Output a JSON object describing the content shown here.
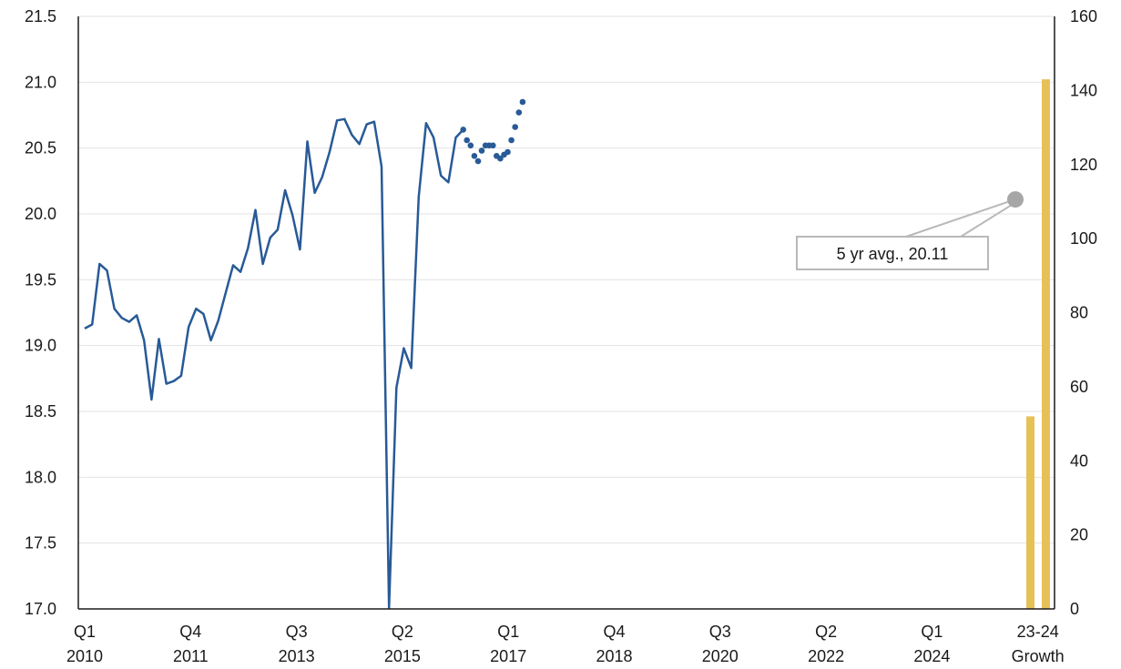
{
  "chart_data": {
    "type": "line",
    "x_labels": [
      [
        "Q1",
        "2010"
      ],
      [
        "Q4",
        "2011"
      ],
      [
        "Q3",
        "2013"
      ],
      [
        "Q2",
        "2015"
      ],
      [
        "Q1",
        "2017"
      ],
      [
        "Q4",
        "2018"
      ],
      [
        "Q3",
        "2020"
      ],
      [
        "Q2",
        "2022"
      ],
      [
        "Q1",
        "2024"
      ],
      [
        "23-24",
        "Growth"
      ]
    ],
    "left_axis": {
      "ylim": [
        17.0,
        21.5
      ],
      "ticks": [
        "17.0",
        "17.5",
        "18.0",
        "18.5",
        "19.0",
        "19.5",
        "20.0",
        "20.5",
        "21.0",
        "21.5"
      ]
    },
    "right_axis": {
      "ylim": [
        0,
        160
      ],
      "ticks": [
        "0",
        "20",
        "40",
        "60",
        "80",
        "100",
        "120",
        "140",
        "160"
      ]
    },
    "series": [
      {
        "style": "solid-line",
        "color": "#285a97",
        "x_start": "2010 Q1",
        "values": [
          19.13,
          19.16,
          19.62,
          19.57,
          19.28,
          19.21,
          19.18,
          19.23,
          19.04,
          18.59,
          19.05,
          18.71,
          18.73,
          18.77,
          19.14,
          19.28,
          19.24,
          19.04,
          19.19,
          19.4,
          19.61,
          19.56,
          19.74,
          20.03,
          19.62,
          19.82,
          19.88,
          20.18,
          19.99,
          19.73,
          20.55,
          20.16,
          20.28,
          20.47,
          20.71,
          20.72,
          20.6,
          20.53,
          20.68,
          20.7,
          20.36,
          17.01,
          18.68,
          18.98,
          18.83,
          20.13,
          20.69,
          20.58,
          20.29,
          20.24,
          20.58,
          20.64
        ]
      },
      {
        "style": "dotted-line",
        "color": "#285a97",
        "x_start": "2022 Q4",
        "values": [
          20.64,
          20.56,
          20.52,
          20.44,
          20.4,
          20.48,
          20.52,
          20.52,
          20.52,
          20.44,
          20.42,
          20.45,
          20.47,
          20.56,
          20.66,
          20.77,
          20.85
        ]
      }
    ],
    "growth_bars": {
      "axis": "right",
      "color": "#e6c157",
      "values": [
        52,
        143
      ]
    },
    "annotation": {
      "text": "5 yr avg., 20.11",
      "value": 20.11,
      "marker_color": "#a6a6a6"
    },
    "grid": "horizontal"
  }
}
